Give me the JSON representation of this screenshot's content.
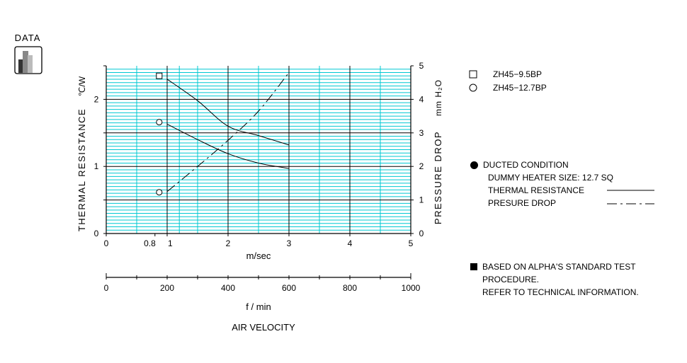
{
  "logo": {
    "label": "DATA"
  },
  "chart_data": {
    "type": "line",
    "x_axis": {
      "label": "m/sec",
      "min": 0,
      "max": 5,
      "ticks": [
        {
          "value": 0,
          "label": "0"
        },
        {
          "value": 0.8,
          "label": "0.8"
        },
        {
          "value": 1,
          "label": "1"
        },
        {
          "value": 2,
          "label": "2"
        },
        {
          "value": 3,
          "label": "3"
        },
        {
          "value": 4,
          "label": "4"
        },
        {
          "value": 5,
          "label": "5"
        }
      ]
    },
    "x2_axis": {
      "label": "f / min",
      "min": 0,
      "max": 1000,
      "ticks": [
        {
          "value": 0,
          "label": "0"
        },
        {
          "value": 200,
          "label": "200"
        },
        {
          "value": 400,
          "label": "400"
        },
        {
          "value": 600,
          "label": "600"
        },
        {
          "value": 800,
          "label": "800"
        },
        {
          "value": 1000,
          "label": "1000"
        }
      ]
    },
    "caption": "AIR VELOCITY",
    "y_left": {
      "label": "THERMAL RESISTANCE",
      "unit": "℃/W",
      "min": 0,
      "max": 2.5,
      "ticks": [
        {
          "value": 0,
          "label": "0"
        },
        {
          "value": 1,
          "label": "1"
        },
        {
          "value": 2,
          "label": "2"
        }
      ]
    },
    "y_right": {
      "label": "PRESSURE DROP",
      "unit": "mm H₂O",
      "min": 0,
      "max": 5,
      "ticks": [
        {
          "value": 0,
          "label": "0"
        },
        {
          "value": 1,
          "label": "1"
        },
        {
          "value": 2,
          "label": "2"
        },
        {
          "value": 3,
          "label": "3"
        },
        {
          "value": 4,
          "label": "4"
        },
        {
          "value": 5,
          "label": "5"
        }
      ]
    },
    "grid": true,
    "series": [
      {
        "name": "ZH45-9.5BP",
        "marker": "square",
        "line": "solid",
        "axis": "left",
        "x": [
          1.0,
          1.5,
          2.0,
          2.5,
          3.0
        ],
        "y": [
          2.3,
          1.98,
          1.6,
          1.46,
          1.32
        ]
      },
      {
        "name": "ZH45-12.7BP",
        "marker": "circle",
        "line": "solid",
        "axis": "left",
        "x": [
          1.0,
          1.5,
          2.0,
          2.5,
          3.0
        ],
        "y": [
          1.63,
          1.4,
          1.19,
          1.05,
          0.97
        ]
      },
      {
        "name": "pressure-drop",
        "marker": "none",
        "line": "dashdot",
        "axis": "right",
        "x": [
          1.0,
          1.5,
          2.0,
          2.5,
          3.0
        ],
        "y": [
          1.25,
          2.0,
          2.78,
          3.65,
          4.8
        ]
      }
    ],
    "marker_points": [
      {
        "marker": "square",
        "x": 0.87,
        "y": 2.35,
        "axis": "left"
      },
      {
        "marker": "circle",
        "x": 0.87,
        "y": 1.66,
        "axis": "left"
      },
      {
        "marker": "circle",
        "x": 0.87,
        "y": 1.23,
        "axis": "right"
      }
    ],
    "legend": {
      "placement": "top-right",
      "entries": [
        {
          "marker": "square",
          "label": "ZH45−9.5BP"
        },
        {
          "marker": "circle",
          "label": "ZH45−12.7BP"
        }
      ]
    },
    "colors": {
      "grid_minor": "#00c8d2",
      "grid_major": "#000000",
      "curve": "#000000"
    }
  },
  "notes": {
    "condition_title": "DUCTED CONDITION",
    "heater_size": "DUMMY HEATER SIZE:  12.7 SQ",
    "thermal_resistance": "THERMAL RESISTANCE",
    "pressure_drop": "PRESURE DROP",
    "standard_line1": "BASED ON ALPHA'S STANDARD TEST",
    "standard_line2": "PROCEDURE.",
    "standard_line3": "REFER TO TECHNICAL INFORMATION."
  }
}
